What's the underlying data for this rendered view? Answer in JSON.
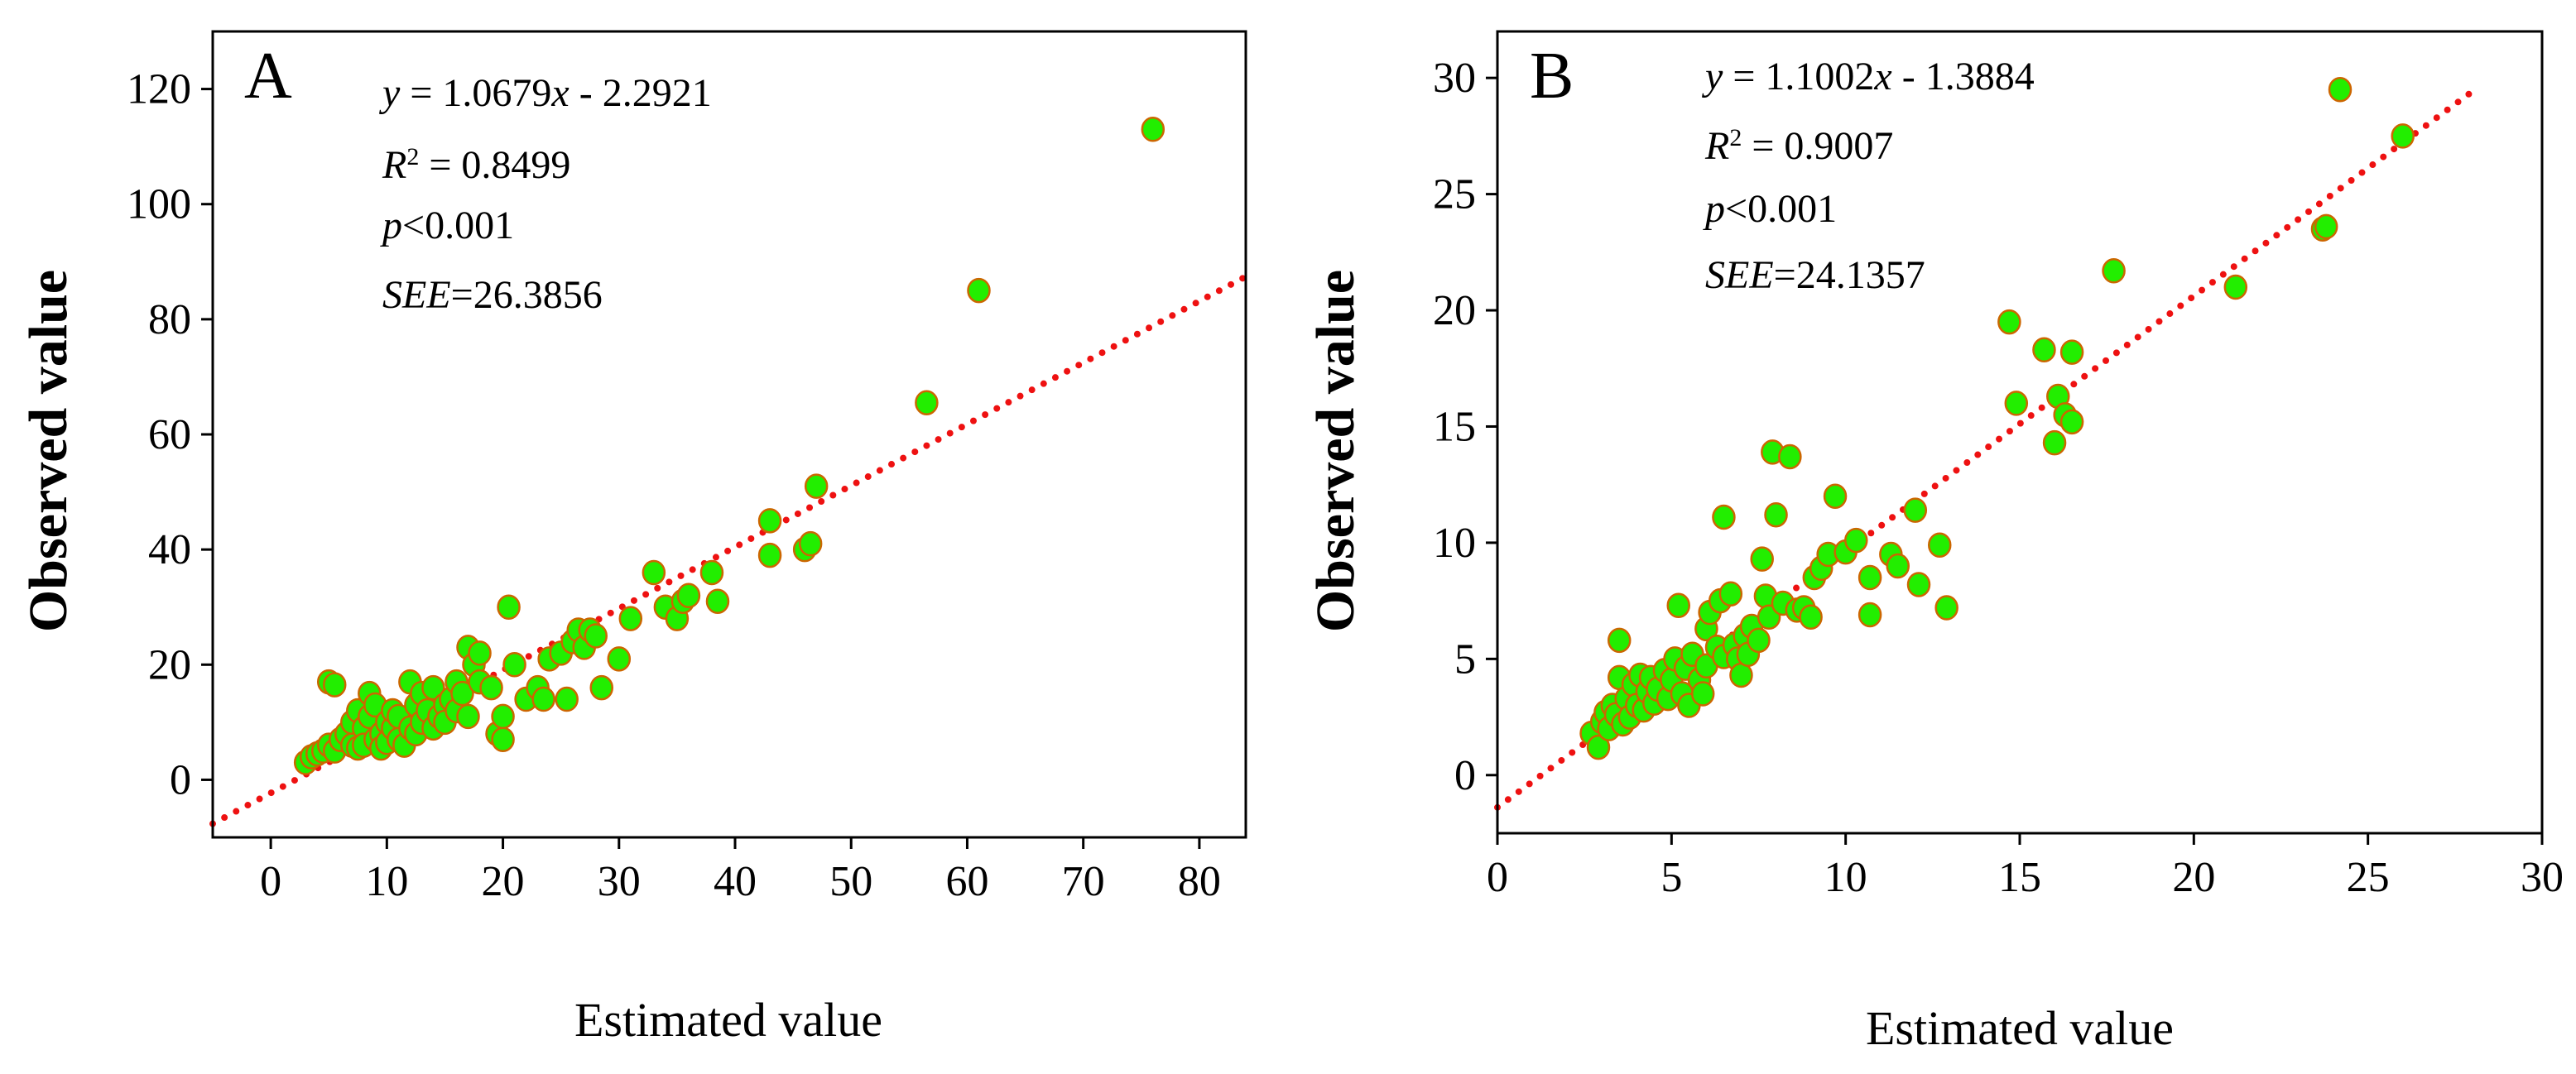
{
  "figure": {
    "style": {
      "point_fill": "#22ee00",
      "point_stroke": "#cc6600",
      "fit_line_color": "#ee1111",
      "axis_color": "#000000"
    }
  },
  "chart_data": [
    {
      "type": "scatter",
      "panel_label": "A",
      "title": "",
      "xlabel": "Estimated value",
      "ylabel": "Observed value",
      "xlim": [
        -5,
        84
      ],
      "ylim": [
        -10,
        130
      ],
      "xticks": [
        0,
        10,
        20,
        30,
        40,
        50,
        60,
        70,
        80
      ],
      "yticks": [
        0,
        20,
        40,
        60,
        80,
        100,
        120
      ],
      "xtick_labels": [
        "0",
        "10",
        "20",
        "30",
        "40",
        "50",
        "60",
        "70",
        "80"
      ],
      "ytick_labels": [
        "0",
        "20",
        "40",
        "60",
        "80",
        "100",
        "120"
      ],
      "grid": false,
      "annotations": {
        "equation": {
          "y": "y",
          "eq": " = 1.0679",
          "x": "x",
          "rest": " - 2.2921"
        },
        "r2": {
          "r": "R",
          "sup": "2",
          "rest": " = 0.8499"
        },
        "p": {
          "p": "p",
          "rest": "<0.001"
        },
        "see": {
          "see": "SEE",
          "rest": "=26.3856"
        }
      },
      "fit": {
        "slope": 1.0679,
        "intercept": -2.2921,
        "x_range": [
          -5,
          84
        ]
      },
      "points": [
        [
          3,
          3
        ],
        [
          3.5,
          4
        ],
        [
          4,
          4.5
        ],
        [
          4.5,
          5
        ],
        [
          5,
          6
        ],
        [
          5,
          17
        ],
        [
          5.5,
          16.5
        ],
        [
          5.5,
          5
        ],
        [
          6,
          7
        ],
        [
          6.5,
          8
        ],
        [
          7,
          10
        ],
        [
          7,
          6
        ],
        [
          7.5,
          12
        ],
        [
          7.5,
          5.5
        ],
        [
          8,
          9
        ],
        [
          8,
          6
        ],
        [
          8.5,
          15
        ],
        [
          8.5,
          11
        ],
        [
          9,
          7
        ],
        [
          9,
          13
        ],
        [
          9.5,
          8
        ],
        [
          9.5,
          5.5
        ],
        [
          10,
          10
        ],
        [
          10,
          6.5
        ],
        [
          10.5,
          9
        ],
        [
          10.5,
          12
        ],
        [
          11,
          7
        ],
        [
          11,
          11
        ],
        [
          11.5,
          6
        ],
        [
          12,
          9
        ],
        [
          12,
          17
        ],
        [
          12.5,
          13
        ],
        [
          12.5,
          8
        ],
        [
          13,
          10
        ],
        [
          13,
          15
        ],
        [
          13.5,
          12
        ],
        [
          14,
          9
        ],
        [
          14,
          16
        ],
        [
          14.5,
          11
        ],
        [
          15,
          13
        ],
        [
          15,
          10
        ],
        [
          15.5,
          14
        ],
        [
          16,
          12
        ],
        [
          16,
          17
        ],
        [
          16.5,
          15
        ],
        [
          17,
          11
        ],
        [
          17,
          23
        ],
        [
          17.5,
          20
        ],
        [
          18,
          17
        ],
        [
          18,
          22
        ],
        [
          19,
          16
        ],
        [
          19.5,
          8
        ],
        [
          20,
          7
        ],
        [
          20,
          11
        ],
        [
          20.5,
          30
        ],
        [
          21,
          20
        ],
        [
          22,
          14
        ],
        [
          23,
          16
        ],
        [
          23.5,
          14
        ],
        [
          24,
          21
        ],
        [
          25,
          22
        ],
        [
          25.5,
          14
        ],
        [
          26,
          24
        ],
        [
          26.5,
          26
        ],
        [
          27,
          23
        ],
        [
          27.5,
          26
        ],
        [
          28,
          25
        ],
        [
          28.5,
          16
        ],
        [
          30,
          21
        ],
        [
          31,
          28
        ],
        [
          33,
          36
        ],
        [
          34,
          30
        ],
        [
          35,
          28
        ],
        [
          35.5,
          31
        ],
        [
          36,
          32
        ],
        [
          38,
          36
        ],
        [
          38.5,
          31
        ],
        [
          43,
          39
        ],
        [
          43,
          45
        ],
        [
          46,
          40
        ],
        [
          46.5,
          41
        ],
        [
          47,
          51
        ],
        [
          56.5,
          65.5
        ],
        [
          61,
          85
        ],
        [
          76,
          113
        ]
      ]
    },
    {
      "type": "scatter",
      "panel_label": "B",
      "title": "",
      "xlabel": "Estimated value",
      "ylabel": "Observed value",
      "xlim": [
        0,
        30
      ],
      "ylim": [
        -2.5,
        32
      ],
      "xticks": [
        0,
        5,
        10,
        15,
        20,
        25,
        30
      ],
      "yticks": [
        0,
        5,
        10,
        15,
        20,
        25,
        30
      ],
      "xtick_labels": [
        "0",
        "5",
        "10",
        "15",
        "20",
        "25",
        "30"
      ],
      "ytick_labels": [
        "0",
        "5",
        "10",
        "15",
        "20",
        "25",
        "30"
      ],
      "grid": false,
      "annotations": {
        "equation": {
          "y": "y",
          "eq": " = 1.1002",
          "x": "x",
          "rest": " - 1.3884"
        },
        "r2": {
          "r": "R",
          "sup": "2",
          "rest": " = 0.9007"
        },
        "p": {
          "p": "p",
          "rest": "<0.001"
        },
        "see": {
          "see": "SEE",
          "rest": "=24.1357"
        }
      },
      "fit": {
        "slope": 1.1002,
        "intercept": -1.3884,
        "x_range": [
          0,
          28
        ]
      },
      "points": [
        [
          2.7,
          1.8
        ],
        [
          2.9,
          1.2
        ],
        [
          3,
          2.3
        ],
        [
          3.1,
          2.7
        ],
        [
          3.2,
          2
        ],
        [
          3.3,
          3
        ],
        [
          3.4,
          2.6
        ],
        [
          3.5,
          5.8
        ],
        [
          3.5,
          4.2
        ],
        [
          3.6,
          2.2
        ],
        [
          3.7,
          3.3
        ],
        [
          3.8,
          2.5
        ],
        [
          3.9,
          3.9
        ],
        [
          4,
          3
        ],
        [
          4.1,
          4.3
        ],
        [
          4.2,
          2.8
        ],
        [
          4.3,
          3.6
        ],
        [
          4.4,
          4.2
        ],
        [
          4.5,
          3.1
        ],
        [
          4.6,
          3.7
        ],
        [
          4.8,
          4.5
        ],
        [
          4.9,
          3.3
        ],
        [
          5,
          4.1
        ],
        [
          5.1,
          5
        ],
        [
          5.2,
          7.3
        ],
        [
          5.3,
          3.5
        ],
        [
          5.4,
          4.6
        ],
        [
          5.5,
          3
        ],
        [
          5.6,
          5.2
        ],
        [
          5.8,
          4.1
        ],
        [
          5.9,
          3.5
        ],
        [
          6,
          4.7
        ],
        [
          6,
          6.3
        ],
        [
          6.1,
          7
        ],
        [
          6.3,
          5.5
        ],
        [
          6.4,
          7.5
        ],
        [
          6.5,
          5.1
        ],
        [
          6.5,
          11.1
        ],
        [
          6.7,
          7.8
        ],
        [
          6.8,
          5.6
        ],
        [
          6.9,
          5
        ],
        [
          7,
          4.3
        ],
        [
          7.1,
          6
        ],
        [
          7.2,
          5.2
        ],
        [
          7.3,
          6.4
        ],
        [
          7.5,
          5.8
        ],
        [
          7.6,
          9.3
        ],
        [
          7.7,
          7.7
        ],
        [
          7.8,
          6.8
        ],
        [
          7.9,
          13.9
        ],
        [
          8,
          11.2
        ],
        [
          8.2,
          7.4
        ],
        [
          8.4,
          13.7
        ],
        [
          8.6,
          7.1
        ],
        [
          8.8,
          7.2
        ],
        [
          9,
          6.8
        ],
        [
          9.1,
          8.5
        ],
        [
          9.3,
          8.9
        ],
        [
          9.5,
          9.5
        ],
        [
          9.7,
          12
        ],
        [
          10,
          9.6
        ],
        [
          10.3,
          10.1
        ],
        [
          10.7,
          8.5
        ],
        [
          10.7,
          6.9
        ],
        [
          11.3,
          9.5
        ],
        [
          11.5,
          9
        ],
        [
          12,
          11.4
        ],
        [
          12.1,
          8.2
        ],
        [
          12.7,
          9.9
        ],
        [
          12.9,
          7.2
        ],
        [
          14.7,
          19.5
        ],
        [
          14.9,
          16
        ],
        [
          15.7,
          18.3
        ],
        [
          16,
          14.3
        ],
        [
          16.1,
          16.3
        ],
        [
          16.3,
          15.5
        ],
        [
          16.5,
          18.2
        ],
        [
          16.5,
          15.2
        ],
        [
          17.7,
          21.7
        ],
        [
          21.2,
          21
        ],
        [
          23.7,
          23.5
        ],
        [
          23.8,
          23.6
        ],
        [
          24.2,
          29.5
        ],
        [
          26,
          27.5
        ]
      ]
    }
  ]
}
